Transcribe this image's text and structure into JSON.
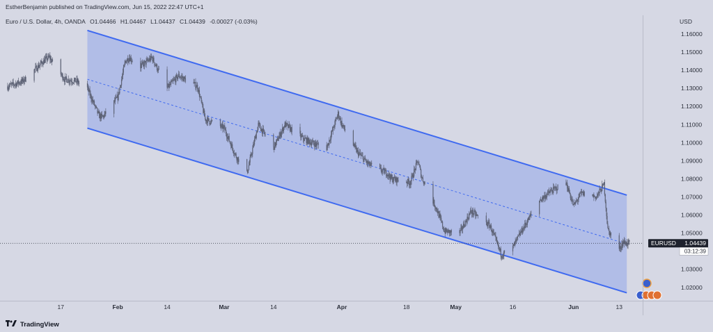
{
  "header": {
    "publisher": "EstherBenjamin published on TradingView.com, Jun 15, 2022 22:47 UTC+1",
    "symbol": "Euro / U.S. Dollar, 4h, OANDA",
    "open": "O1.04466",
    "high": "H1.04467",
    "low": "L1.04437",
    "close": "C1.04439",
    "change": "-0.00027 (-0.03%)",
    "currency": "USD"
  },
  "price_label": {
    "symbol": "EURUSD",
    "price": "1.04439",
    "countdown": "03:12:39"
  },
  "footer": {
    "brand": "TradingView"
  },
  "colors": {
    "background": "#d6d8e4",
    "channel_fill": "#aab9e8",
    "channel_line": "#3f6af0",
    "price_line": "#2a2e39",
    "candle": "#5d6275",
    "label_bg": "#1e222d"
  },
  "chart_data": {
    "type": "candlestick",
    "title": "Euro / U.S. Dollar, 4h, OANDA",
    "ylim": [
      1.013,
      1.165
    ],
    "yticks": [
      "1.16000",
      "1.15000",
      "1.14000",
      "1.13000",
      "1.12000",
      "1.11000",
      "1.10000",
      "1.09000",
      "1.08000",
      "1.07000",
      "1.06000",
      "1.05000",
      "1.04000",
      "1.03000",
      "1.02000"
    ],
    "x_labels": [
      "17",
      "Feb",
      "14",
      "Mar",
      "14",
      "Apr",
      "18",
      "May",
      "16",
      "Jun",
      "13"
    ],
    "x_label_dates": [
      "2022-01-17",
      "2022-02-01",
      "2022-02-14",
      "2022-03-01",
      "2022-03-14",
      "2022-04-01",
      "2022-04-18",
      "2022-05-01",
      "2022-05-16",
      "2022-06-01",
      "2022-06-13"
    ],
    "price_path": [
      [
        "2022-01-03",
        1.131
      ],
      [
        "2022-01-07",
        1.134
      ],
      [
        "2022-01-10",
        1.14
      ],
      [
        "2022-01-13",
        1.146
      ],
      [
        "2022-01-14",
        1.147
      ],
      [
        "2022-01-18",
        1.135
      ],
      [
        "2022-01-21",
        1.134
      ],
      [
        "2022-01-24",
        1.13
      ],
      [
        "2022-01-27",
        1.115
      ],
      [
        "2022-01-28",
        1.114
      ],
      [
        "2022-02-01",
        1.125
      ],
      [
        "2022-02-03",
        1.145
      ],
      [
        "2022-02-04",
        1.147
      ],
      [
        "2022-02-07",
        1.142
      ],
      [
        "2022-02-10",
        1.147
      ],
      [
        "2022-02-14",
        1.13
      ],
      [
        "2022-02-17",
        1.137
      ],
      [
        "2022-02-22",
        1.131
      ],
      [
        "2022-02-24",
        1.113
      ],
      [
        "2022-03-01",
        1.108
      ],
      [
        "2022-03-04",
        1.093
      ],
      [
        "2022-03-07",
        1.083
      ],
      [
        "2022-03-10",
        1.11
      ],
      [
        "2022-03-14",
        1.097
      ],
      [
        "2022-03-17",
        1.11
      ],
      [
        "2022-03-22",
        1.102
      ],
      [
        "2022-03-24",
        1.1
      ],
      [
        "2022-03-28",
        1.097
      ],
      [
        "2022-03-31",
        1.116
      ],
      [
        "2022-04-01",
        1.11
      ],
      [
        "2022-04-05",
        1.095
      ],
      [
        "2022-04-08",
        1.088
      ],
      [
        "2022-04-13",
        1.083
      ],
      [
        "2022-04-14",
        1.08
      ],
      [
        "2022-04-19",
        1.078
      ],
      [
        "2022-04-21",
        1.09
      ],
      [
        "2022-04-22",
        1.081
      ],
      [
        "2022-04-26",
        1.063
      ],
      [
        "2022-04-28",
        1.051
      ],
      [
        "2022-05-02",
        1.05
      ],
      [
        "2022-05-05",
        1.062
      ],
      [
        "2022-05-10",
        1.054
      ],
      [
        "2022-05-13",
        1.038
      ],
      [
        "2022-05-16",
        1.042
      ],
      [
        "2022-05-18",
        1.05
      ],
      [
        "2022-05-23",
        1.068
      ],
      [
        "2022-05-26",
        1.073
      ],
      [
        "2022-05-30",
        1.078
      ],
      [
        "2022-06-01",
        1.065
      ],
      [
        "2022-06-03",
        1.072
      ],
      [
        "2022-06-07",
        1.07
      ],
      [
        "2022-06-09",
        1.077
      ],
      [
        "2022-06-10",
        1.052
      ],
      [
        "2022-06-13",
        1.041
      ],
      [
        "2022-06-14",
        1.045
      ],
      [
        "2022-06-15",
        1.04439
      ]
    ],
    "regression_channel": {
      "start": "2022-01-24",
      "end": "2022-06-15",
      "upper": [
        1.162,
        1.071
      ],
      "mid": [
        1.135,
        1.044
      ],
      "lower": [
        1.108,
        1.017
      ]
    },
    "last_price": 1.04439
  }
}
